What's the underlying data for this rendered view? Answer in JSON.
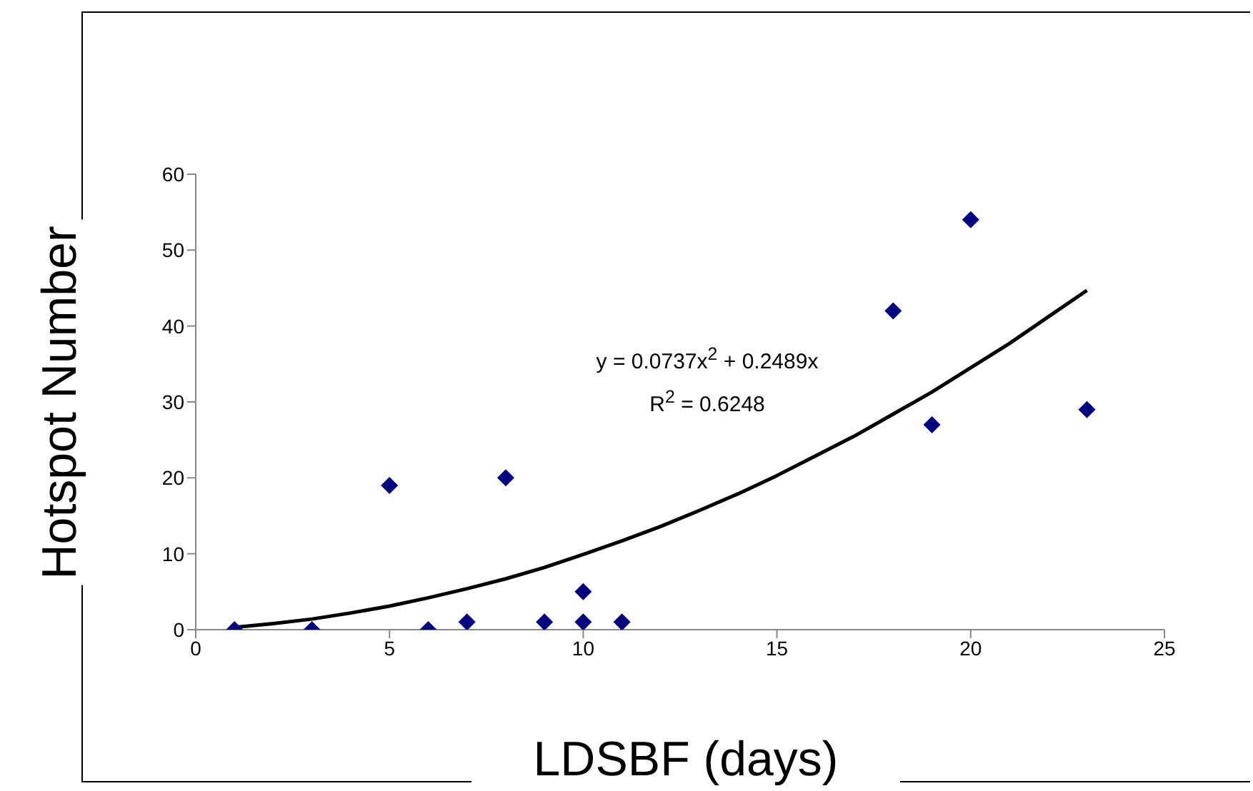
{
  "chart_data": {
    "type": "scatter",
    "xlabel": "LDSBF (days)",
    "ylabel": "Hotspot Number",
    "annotations": [
      "y = 0.0737x$^{2}$ + 0.2489x",
      "R$^{2}$ = 0.6248"
    ],
    "xlim": [
      0,
      25
    ],
    "xticks": [
      0,
      5,
      10,
      15,
      20,
      25
    ],
    "ylim": [
      0,
      60
    ],
    "yticks": [
      0,
      10,
      20,
      30,
      40,
      50,
      60
    ],
    "grid": false,
    "legend": false,
    "series": [
      {
        "marker": "diamond",
        "color": "#000080",
        "x": [
          1,
          3,
          5,
          6,
          7,
          8,
          9,
          10,
          10,
          11,
          18,
          19,
          20,
          23
        ],
        "values": [
          0,
          0,
          19,
          0,
          1,
          20,
          1,
          1,
          5,
          1,
          42,
          27,
          54,
          29
        ]
      },
      {
        "type": "line",
        "marker": "none",
        "color": "#000000",
        "x": [
          1,
          2,
          3,
          4,
          5,
          6,
          7,
          8,
          9,
          10,
          11,
          12,
          13,
          14,
          15,
          16,
          17,
          18,
          19,
          20,
          21,
          22,
          23
        ],
        "values": [
          0.3,
          0.8,
          1.4,
          2.2,
          3.1,
          4.2,
          5.4,
          6.7,
          8.2,
          9.9,
          11.7,
          13.6,
          15.7,
          17.9,
          20.3,
          22.9,
          25.5,
          28.4,
          31.3,
          34.5,
          37.7,
          41.2,
          44.7
        ]
      }
    ]
  }
}
